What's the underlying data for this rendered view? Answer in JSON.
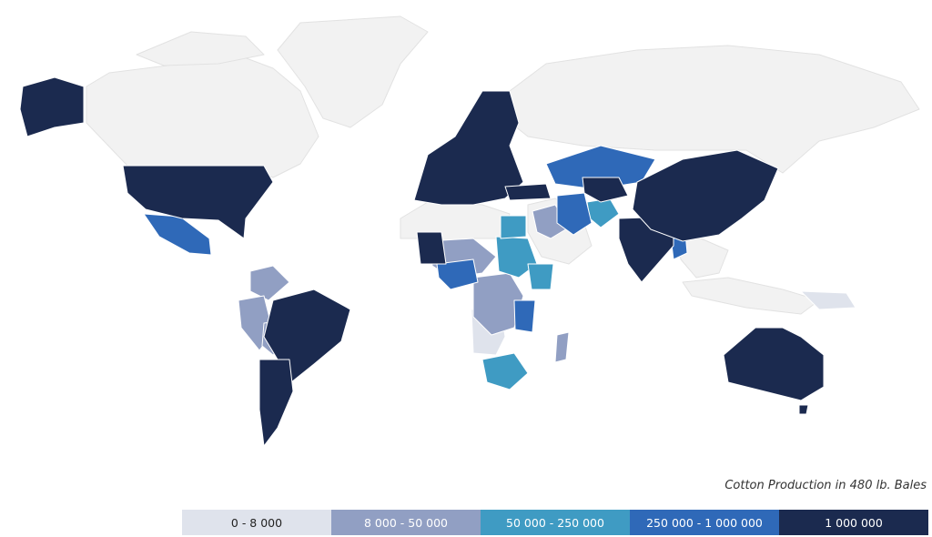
{
  "colors": {
    "ocean": "#ffffff",
    "land_no_data": "#f2f2f2",
    "border": "#e2e2e2",
    "bin_0": "#dfe3ec",
    "bin_1": "#919fc3",
    "bin_2": "#3f9bc3",
    "bin_3": "#2f69b8",
    "bin_4": "#1b2a4f"
  },
  "legend": {
    "title": "Cotton Production in 480 lb. Bales",
    "items": [
      {
        "label": "0 - 8 000",
        "color": "#dfe3ec",
        "text_color": "#222222"
      },
      {
        "label": "8 000 - 50 000",
        "color": "#919fc3",
        "text_color": "#ffffff"
      },
      {
        "label": "50 000 - 250 000",
        "color": "#3f9bc3",
        "text_color": "#ffffff"
      },
      {
        "label": "250 000 - 1 000 000",
        "color": "#2f69b8",
        "text_color": "#ffffff"
      },
      {
        "label": "1 000 000",
        "color": "#1b2a4f",
        "text_color": "#ffffff"
      }
    ]
  },
  "regions": [
    {
      "name": "greenland",
      "bin": -1,
      "pts": [
        [
          305,
          55
        ],
        [
          330,
          25
        ],
        [
          440,
          18
        ],
        [
          470,
          35
        ],
        [
          440,
          70
        ],
        [
          420,
          115
        ],
        [
          385,
          140
        ],
        [
          355,
          130
        ],
        [
          335,
          95
        ]
      ]
    },
    {
      "name": "canada",
      "bin": -1,
      "pts": [
        [
          95,
          95
        ],
        [
          120,
          80
        ],
        [
          200,
          70
        ],
        [
          260,
          60
        ],
        [
          300,
          75
        ],
        [
          330,
          100
        ],
        [
          350,
          150
        ],
        [
          330,
          180
        ],
        [
          300,
          195
        ],
        [
          270,
          182
        ],
        [
          140,
          182
        ],
        [
          95,
          135
        ]
      ]
    },
    {
      "name": "canada-islands",
      "bin": -1,
      "pts": [
        [
          150,
          60
        ],
        [
          210,
          35
        ],
        [
          270,
          40
        ],
        [
          290,
          60
        ],
        [
          240,
          70
        ],
        [
          180,
          72
        ]
      ]
    },
    {
      "name": "russia",
      "bin": -1,
      "pts": [
        [
          560,
          100
        ],
        [
          600,
          70
        ],
        [
          700,
          55
        ],
        [
          800,
          50
        ],
        [
          900,
          60
        ],
        [
          990,
          90
        ],
        [
          1010,
          120
        ],
        [
          960,
          140
        ],
        [
          900,
          155
        ],
        [
          860,
          190
        ],
        [
          820,
          165
        ],
        [
          720,
          165
        ],
        [
          640,
          160
        ],
        [
          580,
          150
        ],
        [
          555,
          130
        ]
      ]
    },
    {
      "name": "north-africa",
      "bin": -1,
      "pts": [
        [
          440,
          240
        ],
        [
          470,
          222
        ],
        [
          530,
          225
        ],
        [
          560,
          235
        ],
        [
          548,
          262
        ],
        [
          520,
          262
        ],
        [
          495,
          268
        ],
        [
          470,
          262
        ],
        [
          440,
          262
        ]
      ]
    },
    {
      "name": "middle-east",
      "bin": -1,
      "pts": [
        [
          580,
          225
        ],
        [
          610,
          218
        ],
        [
          640,
          240
        ],
        [
          650,
          270
        ],
        [
          625,
          290
        ],
        [
          595,
          282
        ],
        [
          580,
          255
        ]
      ]
    },
    {
      "name": "indonesia",
      "bin": -1,
      "pts": [
        [
          750,
          310
        ],
        [
          800,
          305
        ],
        [
          860,
          318
        ],
        [
          900,
          330
        ],
        [
          880,
          345
        ],
        [
          820,
          338
        ],
        [
          760,
          325
        ]
      ]
    },
    {
      "name": "southeast-asia",
      "bin": -1,
      "pts": [
        [
          745,
          265
        ],
        [
          770,
          262
        ],
        [
          800,
          275
        ],
        [
          790,
          300
        ],
        [
          765,
          305
        ],
        [
          748,
          285
        ]
      ]
    },
    {
      "name": "central-africa-light",
      "bin": 0,
      "pts": [
        [
          518,
          340
        ],
        [
          550,
          335
        ],
        [
          555,
          370
        ],
        [
          545,
          390
        ],
        [
          520,
          388
        ]
      ]
    },
    {
      "name": "papua",
      "bin": 0,
      "pts": [
        [
          880,
          320
        ],
        [
          930,
          322
        ],
        [
          940,
          338
        ],
        [
          900,
          340
        ]
      ]
    },
    {
      "name": "colombia",
      "bin": 1,
      "pts": [
        [
          275,
          298
        ],
        [
          300,
          292
        ],
        [
          318,
          310
        ],
        [
          295,
          330
        ],
        [
          275,
          320
        ]
      ]
    },
    {
      "name": "peru",
      "bin": 1,
      "pts": [
        [
          262,
          330
        ],
        [
          290,
          325
        ],
        [
          300,
          365
        ],
        [
          285,
          385
        ],
        [
          265,
          360
        ]
      ]
    },
    {
      "name": "bolivia",
      "bin": 1,
      "pts": [
        [
          290,
          355
        ],
        [
          315,
          352
        ],
        [
          322,
          378
        ],
        [
          300,
          390
        ],
        [
          288,
          380
        ]
      ]
    },
    {
      "name": "west-africa",
      "bin": 1,
      "pts": [
        [
          470,
          265
        ],
        [
          520,
          262
        ],
        [
          545,
          282
        ],
        [
          530,
          300
        ],
        [
          495,
          305
        ],
        [
          475,
          292
        ]
      ]
    },
    {
      "name": "drc",
      "bin": 1,
      "pts": [
        [
          520,
          305
        ],
        [
          560,
          300
        ],
        [
          575,
          325
        ],
        [
          565,
          360
        ],
        [
          540,
          368
        ],
        [
          520,
          348
        ]
      ]
    },
    {
      "name": "iran",
      "bin": 1,
      "pts": [
        [
          585,
          232
        ],
        [
          610,
          225
        ],
        [
          625,
          250
        ],
        [
          605,
          262
        ],
        [
          590,
          255
        ]
      ]
    },
    {
      "name": "madagascar",
      "bin": 1,
      "pts": [
        [
          612,
          368
        ],
        [
          625,
          365
        ],
        [
          622,
          395
        ],
        [
          610,
          398
        ]
      ]
    },
    {
      "name": "sudan",
      "bin": 2,
      "pts": [
        [
          545,
          260
        ],
        [
          580,
          262
        ],
        [
          590,
          290
        ],
        [
          570,
          305
        ],
        [
          548,
          298
        ]
      ]
    },
    {
      "name": "ethiopia",
      "bin": 2,
      "pts": [
        [
          580,
          290
        ],
        [
          608,
          290
        ],
        [
          605,
          318
        ],
        [
          584,
          318
        ]
      ]
    },
    {
      "name": "afghanistan",
      "bin": 2,
      "pts": [
        [
          645,
          222
        ],
        [
          670,
          218
        ],
        [
          680,
          235
        ],
        [
          660,
          250
        ],
        [
          648,
          240
        ]
      ]
    },
    {
      "name": "egypt",
      "bin": 2,
      "pts": [
        [
          550,
          237
        ],
        [
          578,
          237
        ],
        [
          578,
          260
        ],
        [
          550,
          262
        ]
      ]
    },
    {
      "name": "south-africa",
      "bin": 2,
      "pts": [
        [
          530,
          395
        ],
        [
          565,
          388
        ],
        [
          580,
          410
        ],
        [
          560,
          428
        ],
        [
          535,
          420
        ]
      ]
    },
    {
      "name": "korea",
      "bin": 2,
      "pts": [
        [
          822,
          205
        ],
        [
          836,
          205
        ],
        [
          836,
          222
        ],
        [
          824,
          222
        ]
      ]
    },
    {
      "name": "kazakhstan",
      "bin": 3,
      "pts": [
        [
          600,
          180
        ],
        [
          660,
          160
        ],
        [
          720,
          175
        ],
        [
          705,
          200
        ],
        [
          655,
          208
        ],
        [
          610,
          202
        ]
      ]
    },
    {
      "name": "mexico",
      "bin": 3,
      "pts": [
        [
          158,
          235
        ],
        [
          198,
          238
        ],
        [
          230,
          262
        ],
        [
          232,
          280
        ],
        [
          208,
          278
        ],
        [
          175,
          260
        ]
      ]
    },
    {
      "name": "nigeria-region",
      "bin": 3,
      "pts": [
        [
          480,
          290
        ],
        [
          520,
          285
        ],
        [
          525,
          310
        ],
        [
          495,
          318
        ],
        [
          482,
          305
        ]
      ]
    },
    {
      "name": "mozambique",
      "bin": 3,
      "pts": [
        [
          565,
          330
        ],
        [
          588,
          330
        ],
        [
          585,
          365
        ],
        [
          566,
          362
        ]
      ]
    },
    {
      "name": "pakistan-iran",
      "bin": 3,
      "pts": [
        [
          612,
          215
        ],
        [
          642,
          212
        ],
        [
          650,
          245
        ],
        [
          630,
          258
        ],
        [
          612,
          245
        ]
      ]
    },
    {
      "name": "myanmar",
      "bin": 3,
      "pts": [
        [
          735,
          245
        ],
        [
          752,
          245
        ],
        [
          755,
          278
        ],
        [
          740,
          285
        ]
      ]
    },
    {
      "name": "usa",
      "bin": 4,
      "pts": [
        [
          135,
          182
        ],
        [
          290,
          182
        ],
        [
          300,
          200
        ],
        [
          270,
          240
        ],
        [
          268,
          262
        ],
        [
          240,
          242
        ],
        [
          200,
          240
        ],
        [
          160,
          230
        ],
        [
          140,
          212
        ]
      ]
    },
    {
      "name": "alaska",
      "bin": 4,
      "pts": [
        [
          25,
          95
        ],
        [
          60,
          85
        ],
        [
          92,
          95
        ],
        [
          92,
          135
        ],
        [
          60,
          140
        ],
        [
          30,
          150
        ],
        [
          22,
          120
        ]
      ]
    },
    {
      "name": "brazil",
      "bin": 4,
      "pts": [
        [
          300,
          330
        ],
        [
          345,
          318
        ],
        [
          385,
          340
        ],
        [
          375,
          375
        ],
        [
          345,
          400
        ],
        [
          320,
          420
        ],
        [
          305,
          395
        ],
        [
          290,
          370
        ]
      ]
    },
    {
      "name": "argentina",
      "bin": 4,
      "pts": [
        [
          285,
          395
        ],
        [
          318,
          395
        ],
        [
          322,
          430
        ],
        [
          305,
          470
        ],
        [
          290,
          490
        ],
        [
          285,
          450
        ]
      ]
    },
    {
      "name": "europe",
      "bin": 4,
      "pts": [
        [
          455,
          220
        ],
        [
          470,
          170
        ],
        [
          500,
          150
        ],
        [
          530,
          100
        ],
        [
          560,
          100
        ],
        [
          570,
          135
        ],
        [
          560,
          160
        ],
        [
          575,
          200
        ],
        [
          555,
          218
        ],
        [
          520,
          225
        ],
        [
          485,
          225
        ]
      ]
    },
    {
      "name": "turkey",
      "bin": 4,
      "pts": [
        [
          555,
          205
        ],
        [
          600,
          202
        ],
        [
          605,
          218
        ],
        [
          560,
          220
        ]
      ]
    },
    {
      "name": "west-africa-dark",
      "bin": 4,
      "pts": [
        [
          458,
          255
        ],
        [
          485,
          255
        ],
        [
          490,
          290
        ],
        [
          462,
          290
        ]
      ]
    },
    {
      "name": "india",
      "bin": 4,
      "pts": [
        [
          680,
          240
        ],
        [
          740,
          238
        ],
        [
          740,
          270
        ],
        [
          705,
          310
        ],
        [
          690,
          290
        ],
        [
          680,
          262
        ]
      ]
    },
    {
      "name": "china",
      "bin": 4,
      "pts": [
        [
          700,
          200
        ],
        [
          750,
          175
        ],
        [
          810,
          165
        ],
        [
          855,
          185
        ],
        [
          840,
          220
        ],
        [
          815,
          240
        ],
        [
          790,
          258
        ],
        [
          750,
          265
        ],
        [
          715,
          252
        ],
        [
          695,
          230
        ]
      ]
    },
    {
      "name": "uzbekistan",
      "bin": 4,
      "pts": [
        [
          640,
          195
        ],
        [
          680,
          195
        ],
        [
          690,
          215
        ],
        [
          660,
          222
        ],
        [
          642,
          212
        ]
      ]
    },
    {
      "name": "australia",
      "bin": 4,
      "pts": [
        [
          795,
          390
        ],
        [
          830,
          360
        ],
        [
          860,
          360
        ],
        [
          880,
          370
        ],
        [
          905,
          390
        ],
        [
          905,
          425
        ],
        [
          880,
          440
        ],
        [
          840,
          430
        ],
        [
          800,
          420
        ]
      ]
    },
    {
      "name": "tasmania",
      "bin": 4,
      "pts": [
        [
          878,
          445
        ],
        [
          888,
          445
        ],
        [
          886,
          455
        ],
        [
          878,
          455
        ]
      ]
    }
  ]
}
